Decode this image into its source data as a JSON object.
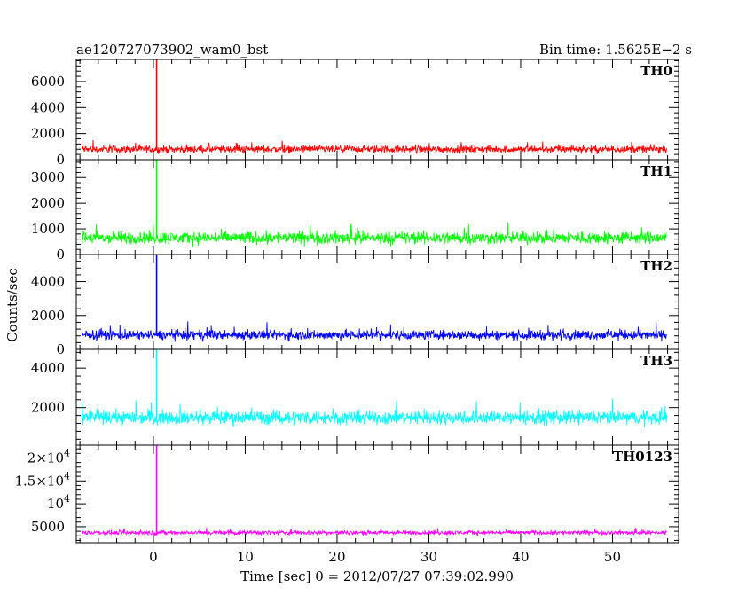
{
  "chart_data": {
    "type": "line",
    "title": "ae120727073902_wam0_bst",
    "subtitle": "Bin time: 1.5625E−2 s",
    "xlabel": "Time [sec] 0 = 2012/07/27 07:39:02.990",
    "ylabel": "Counts/sec",
    "xlim": [
      -8.4,
      57.2
    ],
    "x_ticks": [
      {
        "value": 0,
        "label": "0"
      },
      {
        "value": 10,
        "label": "10"
      },
      {
        "value": 20,
        "label": "20"
      },
      {
        "value": 30,
        "label": "30"
      },
      {
        "value": 40,
        "label": "40"
      },
      {
        "value": 50,
        "label": "50"
      }
    ],
    "grid": false,
    "data_x_range": [
      -7.8,
      55.9
    ],
    "spike_time": 0.35,
    "series": [
      {
        "name": "TH0",
        "color": "#ff0000",
        "ylim": [
          0,
          7700
        ],
        "baseline": 800,
        "noise": 420,
        "peak": 7700,
        "y_ticks": [
          {
            "value": 0,
            "label": "0"
          },
          {
            "value": 2000,
            "label": "2000"
          },
          {
            "value": 4000,
            "label": "4000"
          },
          {
            "value": 6000,
            "label": "6000"
          }
        ]
      },
      {
        "name": "TH1",
        "color": "#00ff00",
        "ylim": [
          0,
          3700
        ],
        "baseline": 650,
        "noise": 370,
        "peak": 3700,
        "y_ticks": [
          {
            "value": 0,
            "label": "0"
          },
          {
            "value": 1000,
            "label": "1000"
          },
          {
            "value": 2000,
            "label": "2000"
          },
          {
            "value": 3000,
            "label": "3000"
          }
        ]
      },
      {
        "name": "TH2",
        "color": "#0000ff",
        "ylim": [
          0,
          5600
        ],
        "baseline": 850,
        "noise": 420,
        "peak": 5600,
        "y_ticks": [
          {
            "value": 0,
            "label": "0"
          },
          {
            "value": 2000,
            "label": "2000"
          },
          {
            "value": 4000,
            "label": "4000"
          }
        ]
      },
      {
        "name": "TH3",
        "color": "#00ffff",
        "ylim": [
          100,
          4950
        ],
        "baseline": 1500,
        "noise": 520,
        "peak": 4950,
        "y_ticks": [
          {
            "value": 2000,
            "label": "2000"
          },
          {
            "value": 4000,
            "label": "4000"
          }
        ]
      },
      {
        "name": "TH0123",
        "color": "#ff00ff",
        "ylim": [
          1500,
          22800
        ],
        "baseline": 3700,
        "noise": 700,
        "peak": 22800,
        "y_ticks": [
          {
            "value": 5000,
            "label": "5000"
          },
          {
            "value": 10000,
            "label": "10",
            "exp": "4"
          },
          {
            "value": 15000,
            "label": "1.5×10",
            "exp": "4"
          },
          {
            "value": 20000,
            "label": "2×10",
            "exp": "4"
          }
        ]
      }
    ]
  }
}
